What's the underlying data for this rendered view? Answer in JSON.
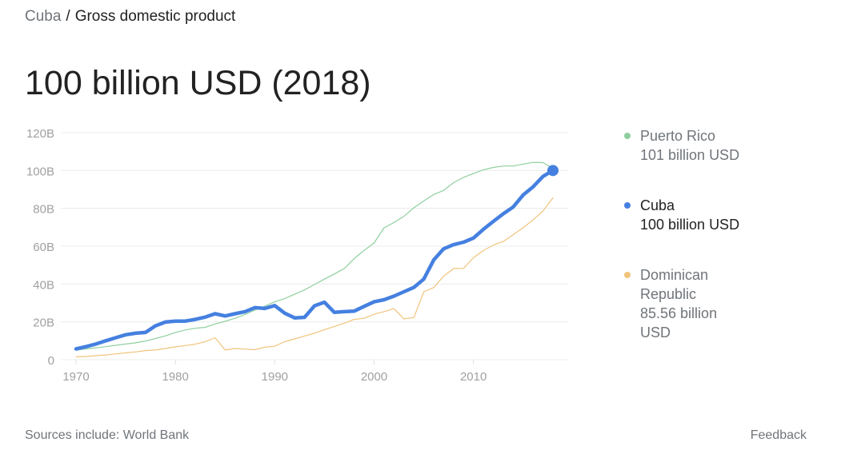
{
  "breadcrumb": {
    "country": "Cuba",
    "separator": "/",
    "topic": "Gross domestic product"
  },
  "headline": "100 billion USD (2018)",
  "legend": [
    {
      "name": "Puerto Rico",
      "value": "101 billion USD",
      "color": "#8fcf9e"
    },
    {
      "name": "Cuba",
      "value": "100 billion USD",
      "color": "#4580e0"
    },
    {
      "name": "Dominican Republic",
      "value": "85.56 billion USD",
      "color": "#f0c47c"
    }
  ],
  "footer": {
    "sources": "Sources include: World Bank",
    "feedback": "Feedback"
  },
  "chart_data": {
    "type": "line",
    "title": "100 billion USD (2018)",
    "xlabel": "",
    "ylabel": "",
    "yticks": [
      "0",
      "20B",
      "40B",
      "60B",
      "80B",
      "100B",
      "120B"
    ],
    "xticks": [
      "1970",
      "1980",
      "1990",
      "2000",
      "2010"
    ],
    "ylim": [
      0,
      120
    ],
    "xlim": [
      1970,
      2018
    ],
    "grid": true,
    "legend_position": "right",
    "x": [
      1970,
      1971,
      1972,
      1973,
      1974,
      1975,
      1976,
      1977,
      1978,
      1979,
      1980,
      1981,
      1982,
      1983,
      1984,
      1985,
      1986,
      1987,
      1988,
      1989,
      1990,
      1991,
      1992,
      1993,
      1994,
      1995,
      1996,
      1997,
      1998,
      1999,
      2000,
      2001,
      2002,
      2003,
      2004,
      2005,
      2006,
      2007,
      2008,
      2009,
      2010,
      2011,
      2012,
      2013,
      2014,
      2015,
      2016,
      2017,
      2018
    ],
    "series": [
      {
        "name": "Puerto Rico",
        "color": "#8fcf9e",
        "width": 1.2,
        "values": [
          5.0,
          5.7,
          6.3,
          6.9,
          7.6,
          8.3,
          8.9,
          9.9,
          11.2,
          12.6,
          14.4,
          15.7,
          16.6,
          17.1,
          18.9,
          20.3,
          21.9,
          23.9,
          26.2,
          28.3,
          30.6,
          32.3,
          34.6,
          36.9,
          39.7,
          42.6,
          45.3,
          48.2,
          53.5,
          57.8,
          61.7,
          69.7,
          72.5,
          75.8,
          80.3,
          83.9,
          87.3,
          89.5,
          93.6,
          96.4,
          98.4,
          100.4,
          101.6,
          102.4,
          102.4,
          103.4,
          104.3,
          104.2,
          101.1
        ]
      },
      {
        "name": "Cuba",
        "color": "#4580e0",
        "width": 4.5,
        "values": [
          5.7,
          6.9,
          8.3,
          10.0,
          11.6,
          13.2,
          14.0,
          14.4,
          17.9,
          19.9,
          20.4,
          20.4,
          21.3,
          22.5,
          24.3,
          23.1,
          24.3,
          25.4,
          27.5,
          27.1,
          28.6,
          24.6,
          22.1,
          22.4,
          28.5,
          30.4,
          25.0,
          25.4,
          25.7,
          28.2,
          30.6,
          31.7,
          33.6,
          35.9,
          38.2,
          42.6,
          52.7,
          58.6,
          60.8,
          62.1,
          64.3,
          68.9,
          73.1,
          77.1,
          80.7,
          87.1,
          91.4,
          96.9,
          100.0
        ]
      },
      {
        "name": "Dominican Republic",
        "color": "#f0c47c",
        "width": 1.2,
        "values": [
          1.5,
          1.7,
          2.1,
          2.5,
          3.1,
          3.6,
          4.1,
          4.8,
          5.1,
          5.9,
          6.8,
          7.5,
          8.2,
          9.5,
          11.6,
          5.1,
          5.9,
          5.6,
          5.3,
          6.6,
          7.1,
          9.5,
          11.0,
          12.5,
          14.0,
          15.9,
          17.5,
          19.3,
          21.3,
          21.9,
          24.0,
          25.4,
          27.0,
          21.6,
          22.3,
          35.9,
          38.1,
          44.1,
          48.2,
          48.3,
          53.9,
          57.7,
          60.6,
          62.5,
          66.1,
          69.8,
          73.9,
          78.6,
          85.56
        ]
      }
    ]
  }
}
